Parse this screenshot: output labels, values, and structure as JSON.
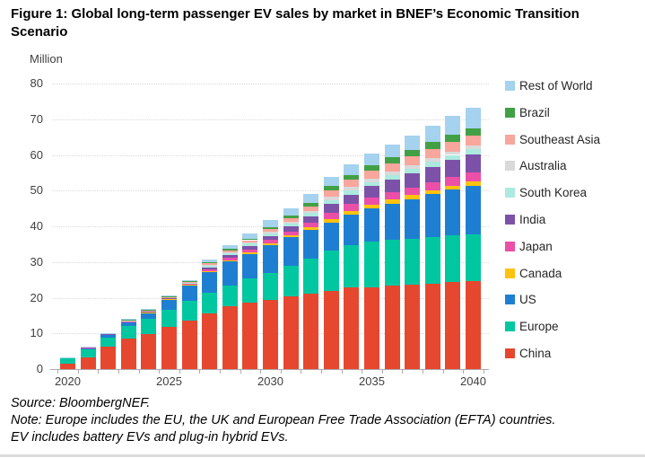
{
  "figure": {
    "title": "Figure 1: Global long-term passenger EV sales by market in BNEF’s Economic Transition Scenario",
    "unit_label": "Million"
  },
  "chart_data": {
    "type": "bar",
    "subtype": "stacked",
    "title": "Figure 1: Global long-term passenger EV sales by market in BNEF's Economic Transition Scenario",
    "ylabel": "Million",
    "xlabel": "",
    "ylim": [
      0,
      80
    ],
    "ytick_step": 10,
    "grid": "horizontal-dotted",
    "legend_position": "right",
    "x": [
      2020,
      2021,
      2022,
      2023,
      2024,
      2025,
      2026,
      2027,
      2028,
      2029,
      2030,
      2031,
      2032,
      2033,
      2034,
      2035,
      2036,
      2037,
      2038,
      2039,
      2040
    ],
    "x_labeled_ticks": [
      2020,
      2025,
      2030,
      2035,
      2040
    ],
    "series": [
      {
        "name": "China",
        "color": "#e6472f",
        "values": [
          1.4,
          3.3,
          6.2,
          8.5,
          9.9,
          11.9,
          13.7,
          15.7,
          17.6,
          18.6,
          19.3,
          20.4,
          21.2,
          22.0,
          22.8,
          23.0,
          23.3,
          23.6,
          24.0,
          24.5,
          24.7
        ]
      },
      {
        "name": "Europe",
        "color": "#00c7a0",
        "values": [
          1.6,
          2.3,
          2.6,
          3.6,
          4.2,
          4.7,
          5.5,
          5.7,
          5.9,
          6.7,
          7.5,
          8.5,
          9.8,
          11.1,
          11.8,
          12.8,
          12.9,
          13.0,
          13.0,
          13.0,
          13.0
        ]
      },
      {
        "name": "US",
        "color": "#1e7fd2",
        "values": [
          0.2,
          0.45,
          0.85,
          1.1,
          1.6,
          2.8,
          4.2,
          5.7,
          6.6,
          7.0,
          7.9,
          8.0,
          8.0,
          7.9,
          8.6,
          9.2,
          10.2,
          11.0,
          12.0,
          12.8,
          13.6
        ]
      },
      {
        "name": "Canada",
        "color": "#ffc20e",
        "values": [
          0.03,
          0.06,
          0.1,
          0.15,
          0.2,
          0.2,
          0.25,
          0.4,
          0.45,
          0.5,
          0.55,
          0.6,
          0.7,
          1.0,
          1.1,
          1.1,
          1.1,
          1.1,
          1.1,
          1.1,
          1.2
        ]
      },
      {
        "name": "Japan",
        "color": "#ec4fa8",
        "values": [
          0.02,
          0.04,
          0.06,
          0.1,
          0.14,
          0.15,
          0.2,
          0.5,
          0.6,
          0.75,
          0.9,
          1.1,
          1.3,
          1.7,
          1.9,
          2.0,
          2.1,
          2.2,
          2.3,
          2.4,
          2.6
        ]
      },
      {
        "name": "India",
        "color": "#7c52a8",
        "values": [
          0.0,
          0.01,
          0.03,
          0.06,
          0.1,
          0.15,
          0.2,
          0.5,
          0.7,
          0.9,
          1.1,
          1.4,
          1.8,
          2.5,
          2.7,
          3.1,
          3.5,
          3.9,
          4.3,
          4.7,
          5.0
        ]
      },
      {
        "name": "South Korea",
        "color": "#ace9df",
        "values": [
          0.03,
          0.06,
          0.1,
          0.13,
          0.15,
          0.17,
          0.2,
          0.5,
          0.55,
          0.65,
          0.75,
          0.85,
          0.95,
          1.1,
          1.2,
          1.2,
          1.3,
          1.4,
          1.5,
          1.5,
          1.6
        ]
      },
      {
        "name": "Australia",
        "color": "#d9d9d9",
        "values": [
          0.01,
          0.02,
          0.03,
          0.05,
          0.07,
          0.08,
          0.1,
          0.3,
          0.35,
          0.4,
          0.45,
          0.5,
          0.6,
          0.9,
          0.9,
          0.9,
          0.9,
          0.9,
          0.9,
          0.9,
          0.9
        ]
      },
      {
        "name": "Southeast Asia",
        "color": "#f9a69c",
        "values": [
          0.01,
          0.02,
          0.04,
          0.06,
          0.09,
          0.1,
          0.12,
          0.3,
          0.45,
          0.6,
          0.8,
          1.0,
          1.3,
          1.8,
          2.1,
          2.3,
          2.4,
          2.5,
          2.6,
          2.7,
          2.8
        ]
      },
      {
        "name": "Brazil",
        "color": "#41a046",
        "values": [
          0.01,
          0.02,
          0.03,
          0.05,
          0.07,
          0.08,
          0.1,
          0.3,
          0.4,
          0.5,
          0.6,
          0.75,
          0.9,
          1.3,
          1.3,
          1.4,
          1.6,
          1.7,
          1.9,
          2.0,
          2.1
        ]
      },
      {
        "name": "Rest of World",
        "color": "#a5d2ee",
        "values": [
          0.05,
          0.08,
          0.12,
          0.18,
          0.25,
          0.35,
          0.35,
          0.8,
          1.0,
          1.3,
          1.8,
          2.0,
          2.5,
          2.5,
          3.0,
          3.4,
          3.7,
          4.2,
          4.7,
          5.4,
          5.8
        ]
      }
    ]
  },
  "footer": {
    "source": "Source: BloombergNEF.",
    "note": "Note: Europe includes the EU, the UK and European Free Trade Association (EFTA) countries. EV includes battery EVs and plug-in hybrid EVs."
  }
}
